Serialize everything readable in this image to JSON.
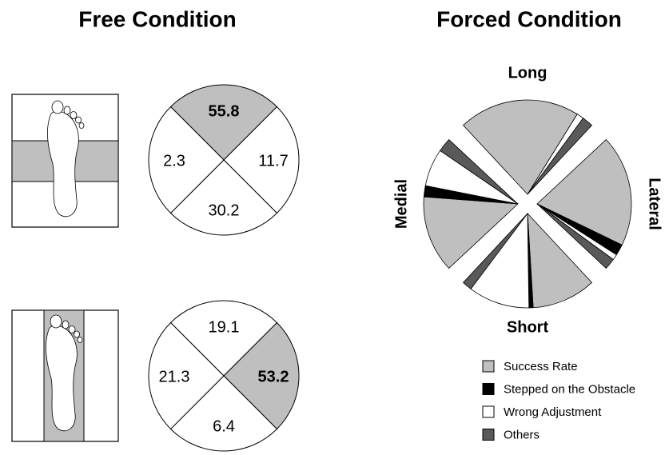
{
  "header": {
    "free_title": "Free Condition"
  },
  "chart_data": [
    {
      "type": "quadrant",
      "values": [
        55.8,
        11.7,
        30.2,
        2.3
      ],
      "highlight": 0,
      "highlight_color": "#bfbfbf"
    },
    {
      "type": "quadrant",
      "values": [
        19.1,
        53.2,
        6.4,
        21.3
      ],
      "highlight": 1,
      "highlight_color": "#bfbfbf"
    },
    {
      "type": "pie",
      "title": "Forced Condition",
      "categories": [
        "Long",
        "Lateral",
        "Short",
        "Medial"
      ],
      "series": [
        {
          "name": "Success Rate",
          "color": "#bfbfbf",
          "values": [
            87,
            80,
            46,
            55
          ]
        },
        {
          "name": "Stepped on the Obstacle",
          "color": "#000000",
          "values": [
            0,
            8,
            3,
            8
          ]
        },
        {
          "name": "Wrong Adjustment",
          "color": "#ffffff",
          "values": [
            5,
            4,
            44,
            27
          ]
        },
        {
          "name": "Others",
          "color": "#595959",
          "values": [
            8,
            8,
            7,
            10
          ]
        }
      ]
    }
  ]
}
